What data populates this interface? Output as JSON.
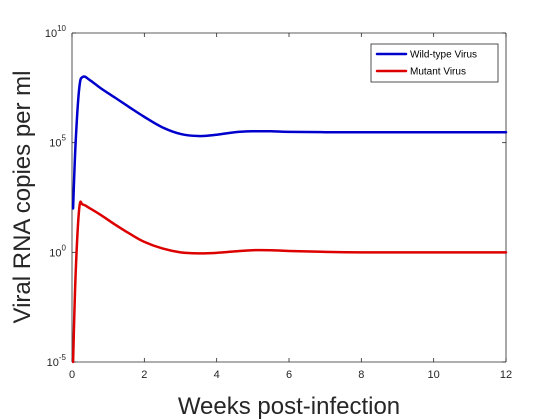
{
  "chart_data": {
    "type": "line",
    "title": "",
    "xlabel": "Weeks post-infection",
    "ylabel": "Viral RNA copies per ml",
    "xlim": [
      0,
      12
    ],
    "ylim": [
      1e-05,
      10000000000.0
    ],
    "yscale": "log",
    "xticks": [
      "0",
      "2",
      "4",
      "6",
      "8",
      "10",
      "12"
    ],
    "yticks": [
      {
        "base": "10",
        "exp": "-5"
      },
      {
        "base": "10",
        "exp": "0"
      },
      {
        "base": "10",
        "exp": "5"
      },
      {
        "base": "10",
        "exp": "10"
      }
    ],
    "grid": false,
    "legend": "top-right",
    "series": [
      {
        "name": "Wild-type Virus",
        "color": "#0000cc",
        "x": [
          0.03,
          0.1,
          0.2,
          0.3,
          0.5,
          0.8,
          1.2,
          1.6,
          2.0,
          2.5,
          3.0,
          3.5,
          4.0,
          4.5,
          5.0,
          5.5,
          6.0,
          7.0,
          8.0,
          10.0,
          12.0
        ],
        "y": [
          100.0,
          100000.0,
          30000000.0,
          100000000.0,
          70000000.0,
          30000000.0,
          11000000.0,
          4000000.0,
          1500000.0,
          500000.0,
          250000.0,
          200000.0,
          230000.0,
          300000.0,
          330000.0,
          330000.0,
          310000.0,
          300000.0,
          300000.0,
          300000.0,
          300000.0
        ]
      },
      {
        "name": "Mutant Virus",
        "color": "#dd0000",
        "x": [
          0.03,
          0.1,
          0.2,
          0.3,
          0.5,
          0.8,
          1.2,
          1.6,
          2.0,
          2.5,
          3.0,
          3.5,
          4.0,
          4.5,
          5.0,
          5.5,
          6.0,
          7.0,
          8.0,
          10.0,
          12.0
        ],
        "y": [
          1e-05,
          0.1,
          100.0,
          150.0,
          100.0,
          50.0,
          18.0,
          7,
          3,
          1.5,
          1,
          0.9,
          0.95,
          1.1,
          1.25,
          1.25,
          1.15,
          1.05,
          1,
          1,
          1
        ]
      }
    ]
  }
}
